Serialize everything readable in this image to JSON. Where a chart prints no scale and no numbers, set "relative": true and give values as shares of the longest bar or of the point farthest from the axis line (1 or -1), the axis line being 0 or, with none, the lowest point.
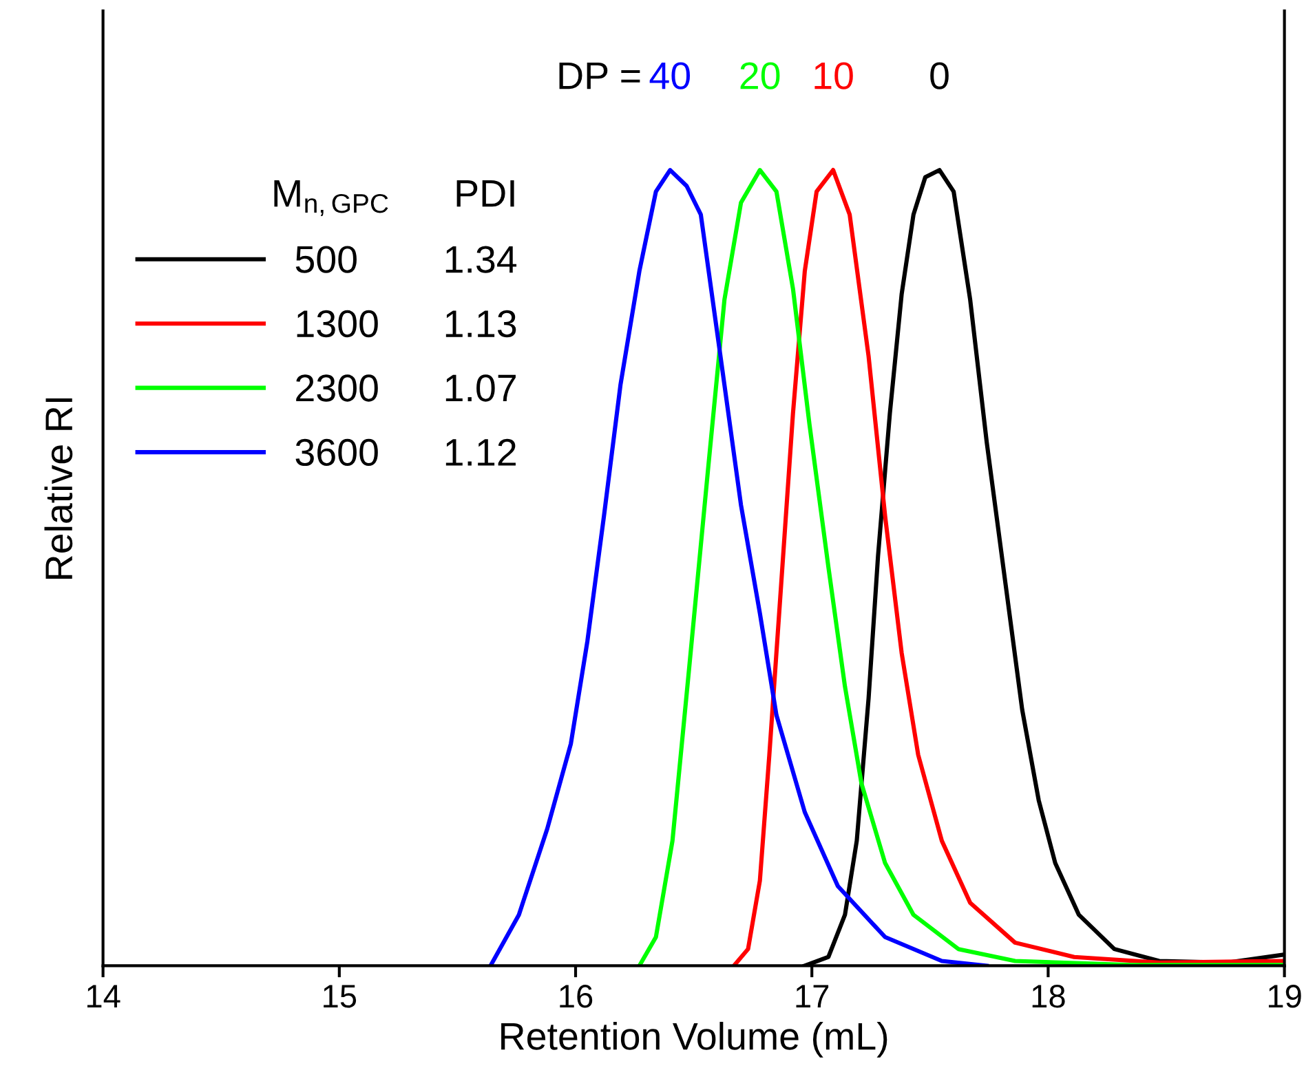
{
  "chart_data": {
    "type": "line",
    "relative": true,
    "xlabel": "Retention Volume (mL)",
    "ylabel": "Relative RI",
    "xlim": [
      14,
      19
    ],
    "xticks": [
      14,
      15,
      16,
      17,
      18,
      19
    ],
    "tick_labels": "x",
    "grid": false,
    "legend": "top left",
    "marker": "none",
    "line_style": "solid",
    "legend_title": "M$_{n,GPC}$      PDI",
    "annotations": [
      "DP =",
      "40",
      "20",
      "10",
      "0"
    ],
    "series": [
      {
        "name": "500        1.34",
        "color": "#000000",
        "x": [
          16.97,
          17.07,
          17.14,
          17.19,
          17.24,
          17.28,
          17.33,
          17.38,
          17.43,
          17.48,
          17.54,
          17.6,
          17.67,
          17.74,
          17.82,
          17.89,
          17.96,
          18.03,
          18.13,
          18.28,
          18.47,
          18.76,
          19.0
        ],
        "values": [
          0,
          0.011,
          0.064,
          0.157,
          0.336,
          0.515,
          0.694,
          0.844,
          0.944,
          0.991,
          1.0,
          0.973,
          0.837,
          0.658,
          0.479,
          0.322,
          0.208,
          0.129,
          0.064,
          0.021,
          0.006,
          0.004,
          0.014
        ]
      },
      {
        "name": "1300      1.13",
        "color": "#ff0000",
        "x": [
          16.67,
          16.73,
          16.78,
          16.82,
          16.87,
          16.92,
          16.97,
          17.02,
          17.09,
          17.16,
          17.24,
          17.31,
          17.38,
          17.45,
          17.55,
          17.67,
          17.86,
          18.11,
          18.47,
          19.0
        ],
        "values": [
          0,
          0.021,
          0.107,
          0.265,
          0.479,
          0.694,
          0.873,
          0.973,
          1.0,
          0.944,
          0.766,
          0.565,
          0.393,
          0.265,
          0.157,
          0.079,
          0.029,
          0.011,
          0.004,
          0.006
        ]
      },
      {
        "name": "2300      1.07",
        "color": "#00ff00",
        "x": [
          16.27,
          16.34,
          16.41,
          16.48,
          16.56,
          16.63,
          16.7,
          16.78,
          16.85,
          16.92,
          16.99,
          17.07,
          17.14,
          17.21,
          17.31,
          17.43,
          17.62,
          17.86,
          18.35,
          19.0
        ],
        "values": [
          0,
          0.036,
          0.157,
          0.372,
          0.622,
          0.837,
          0.959,
          1.0,
          0.973,
          0.851,
          0.68,
          0.501,
          0.351,
          0.229,
          0.129,
          0.064,
          0.021,
          0.006,
          0.001,
          0.001
        ]
      },
      {
        "name": "3600      1.12",
        "color": "#0000ff",
        "x": [
          15.64,
          15.76,
          15.88,
          15.98,
          16.05,
          16.12,
          16.19,
          16.27,
          16.34,
          16.4,
          16.47,
          16.53,
          16.63,
          16.7,
          16.78,
          16.85,
          16.97,
          17.11,
          17.31,
          17.55,
          17.74
        ],
        "values": [
          0,
          0.064,
          0.172,
          0.279,
          0.408,
          0.565,
          0.73,
          0.873,
          0.973,
          1.0,
          0.98,
          0.944,
          0.73,
          0.579,
          0.443,
          0.315,
          0.193,
          0.1,
          0.036,
          0.006,
          0
        ]
      }
    ]
  }
}
